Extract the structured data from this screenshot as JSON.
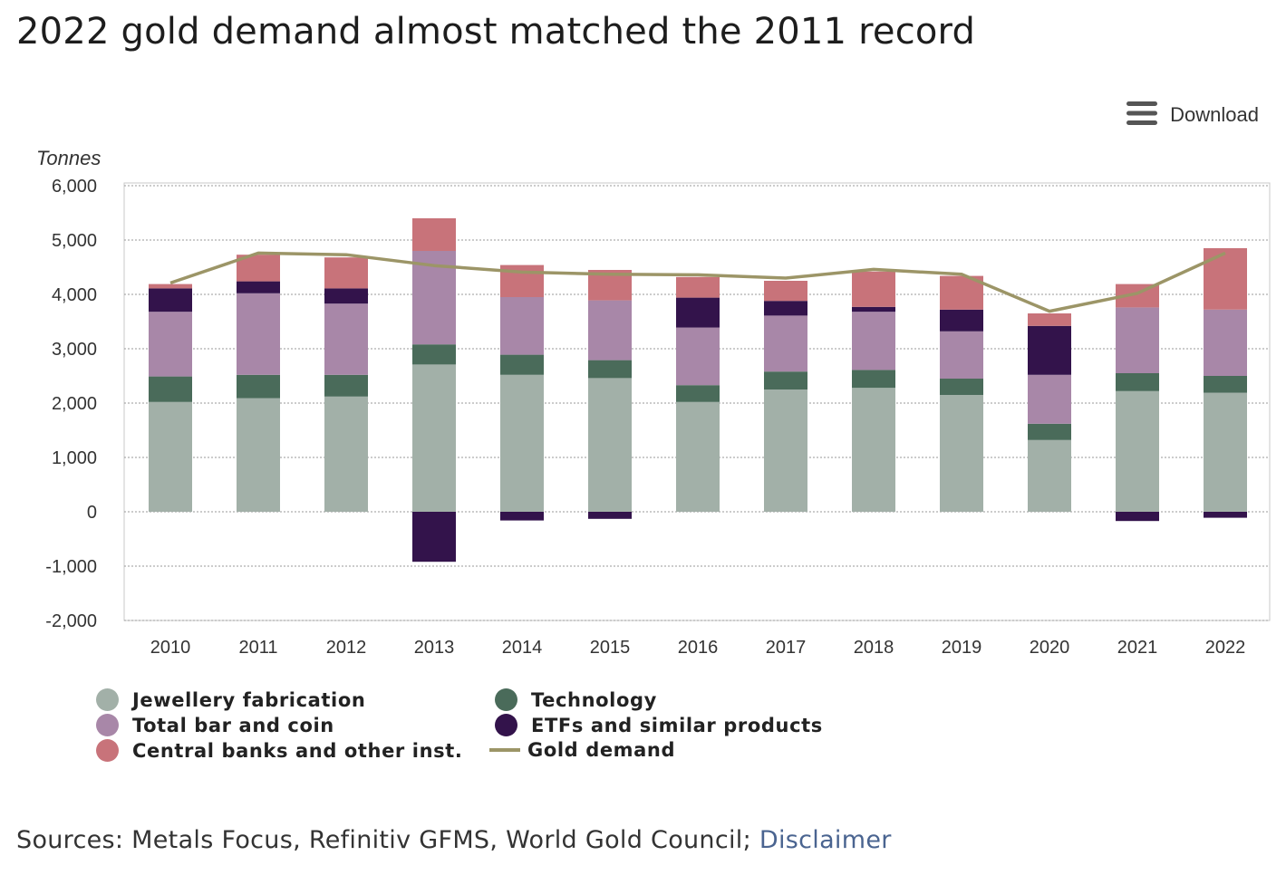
{
  "title": "2022 gold demand almost matched the 2011 record",
  "download_label": "Download",
  "sources_text": "Sources: Metals Focus, Refinitiv GFMS, World Gold Council; ",
  "disclaimer_label": "Disclaimer",
  "icons": {
    "download": "hamburger-menu-icon"
  },
  "chart_data": {
    "type": "bar",
    "stacked": true,
    "ylabel": "Tonnes",
    "ylim": [
      -2000,
      6000
    ],
    "yticks": [
      6000,
      5000,
      4000,
      3000,
      2000,
      1000,
      0,
      -1000,
      -2000
    ],
    "ytick_labels": [
      "6,000",
      "5,000",
      "4,000",
      "3,000",
      "2,000",
      "1,000",
      "0",
      "-1,000",
      "-2,000"
    ],
    "grid": true,
    "legend_position": "bottom",
    "categories": [
      "2010",
      "2011",
      "2012",
      "2013",
      "2014",
      "2015",
      "2016",
      "2017",
      "2018",
      "2019",
      "2020",
      "2021",
      "2022"
    ],
    "series": [
      {
        "name": "Jewellery fabrication",
        "color": "#a2b0a8",
        "values": [
          2020,
          2090,
          2120,
          2710,
          2520,
          2460,
          2020,
          2250,
          2280,
          2150,
          1320,
          2220,
          2190
        ]
      },
      {
        "name": "Technology",
        "color": "#4a6b5a",
        "values": [
          470,
          430,
          400,
          370,
          370,
          330,
          310,
          330,
          330,
          300,
          300,
          330,
          310
        ]
      },
      {
        "name": "Total bar and coin",
        "color": "#a887a8",
        "values": [
          1190,
          1500,
          1310,
          1720,
          1060,
          1100,
          1060,
          1030,
          1070,
          870,
          900,
          1210,
          1220
        ]
      },
      {
        "name": "ETFs and similar products",
        "color": "#33134b",
        "values": [
          430,
          220,
          280,
          -920,
          -160,
          -130,
          550,
          270,
          90,
          400,
          900,
          -170,
          -110
        ]
      },
      {
        "name": "Central banks and other inst.",
        "color": "#c8737a",
        "values": [
          80,
          490,
          570,
          600,
          590,
          560,
          380,
          370,
          650,
          620,
          230,
          430,
          1130
        ]
      }
    ],
    "line": {
      "name": "Gold demand",
      "color": "#9c9567",
      "values": [
        4210,
        4760,
        4730,
        4530,
        4410,
        4370,
        4360,
        4300,
        4460,
        4370,
        3690,
        4020,
        4760
      ]
    }
  }
}
